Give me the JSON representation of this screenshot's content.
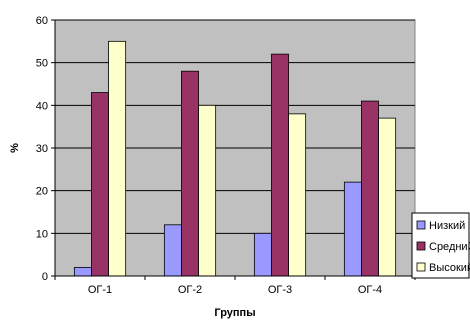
{
  "chart_data": {
    "type": "bar",
    "title": "",
    "xlabel": "Группы",
    "ylabel": "%",
    "ylim": [
      0,
      60
    ],
    "yticks": [
      0,
      10,
      20,
      30,
      40,
      50,
      60
    ],
    "grid": "horizontal",
    "legend_position": "bottom-right",
    "categories": [
      "ОГ-1",
      "ОГ-2",
      "ОГ-3",
      "ОГ-4"
    ],
    "series": [
      {
        "name": "Низкий",
        "color": "#9999ff",
        "values": [
          2,
          12,
          10,
          22
        ]
      },
      {
        "name": "Средний",
        "color": "#993366",
        "values": [
          43,
          48,
          52,
          41
        ]
      },
      {
        "name": "Высокий",
        "color": "#ffffcc",
        "values": [
          55,
          40,
          38,
          37
        ]
      }
    ],
    "plot_background": "#c0c0c0"
  }
}
